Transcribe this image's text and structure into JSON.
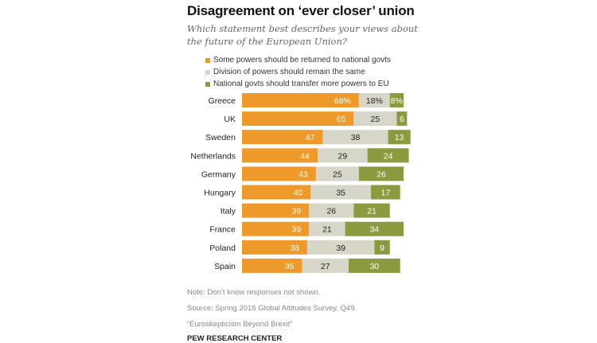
{
  "chart_data": {
    "type": "bar",
    "stacked": true,
    "orientation": "horizontal",
    "title": "Disagreement  on ‘ever closer’ union",
    "subtitle": "Which statement best describes your views about the future of the European Union?",
    "categories": [
      "Greece",
      "UK",
      "Sweden",
      "Netherlands",
      "Germany",
      "Hungary",
      "Italy",
      "France",
      "Poland",
      "Spain"
    ],
    "series": [
      {
        "name": "Some powers should be returned to national govts",
        "color": "#EE9A2B",
        "label_color": "#ffffff",
        "values": [
          68,
          65,
          47,
          44,
          43,
          40,
          39,
          39,
          38,
          35
        ]
      },
      {
        "name": "Division of powers should remain the same",
        "color": "#D8D5C9",
        "label_color": "#222222",
        "values": [
          18,
          25,
          38,
          29,
          25,
          35,
          26,
          21,
          39,
          27
        ]
      },
      {
        "name": "National govts should transfer more powers to EU",
        "color": "#8A9A3F",
        "label_color": "#ffffff",
        "values": [
          8,
          6,
          13,
          24,
          26,
          17,
          21,
          34,
          9,
          30
        ]
      }
    ],
    "value_labels": [
      [
        "68%",
        "18%",
        "8%"
      ],
      [
        "65",
        "25",
        "6"
      ],
      [
        "47",
        "38",
        "13"
      ],
      [
        "44",
        "29",
        "24"
      ],
      [
        "43",
        "25",
        "26"
      ],
      [
        "40",
        "35",
        "17"
      ],
      [
        "39",
        "26",
        "21"
      ],
      [
        "39",
        "21",
        "34"
      ],
      [
        "38",
        "39",
        "9"
      ],
      [
        "35",
        "27",
        "30"
      ]
    ],
    "unit": "%",
    "legend_position": "top",
    "grid": false
  },
  "notes": {
    "note": "Note: Don’t know responses not shown.",
    "source": "Source: Spring 2016 Global Attitudes Survey. Q49.",
    "report": "“Euroskepticism Beyond Brexit”",
    "brand": "PEW RESEARCH CENTER"
  }
}
